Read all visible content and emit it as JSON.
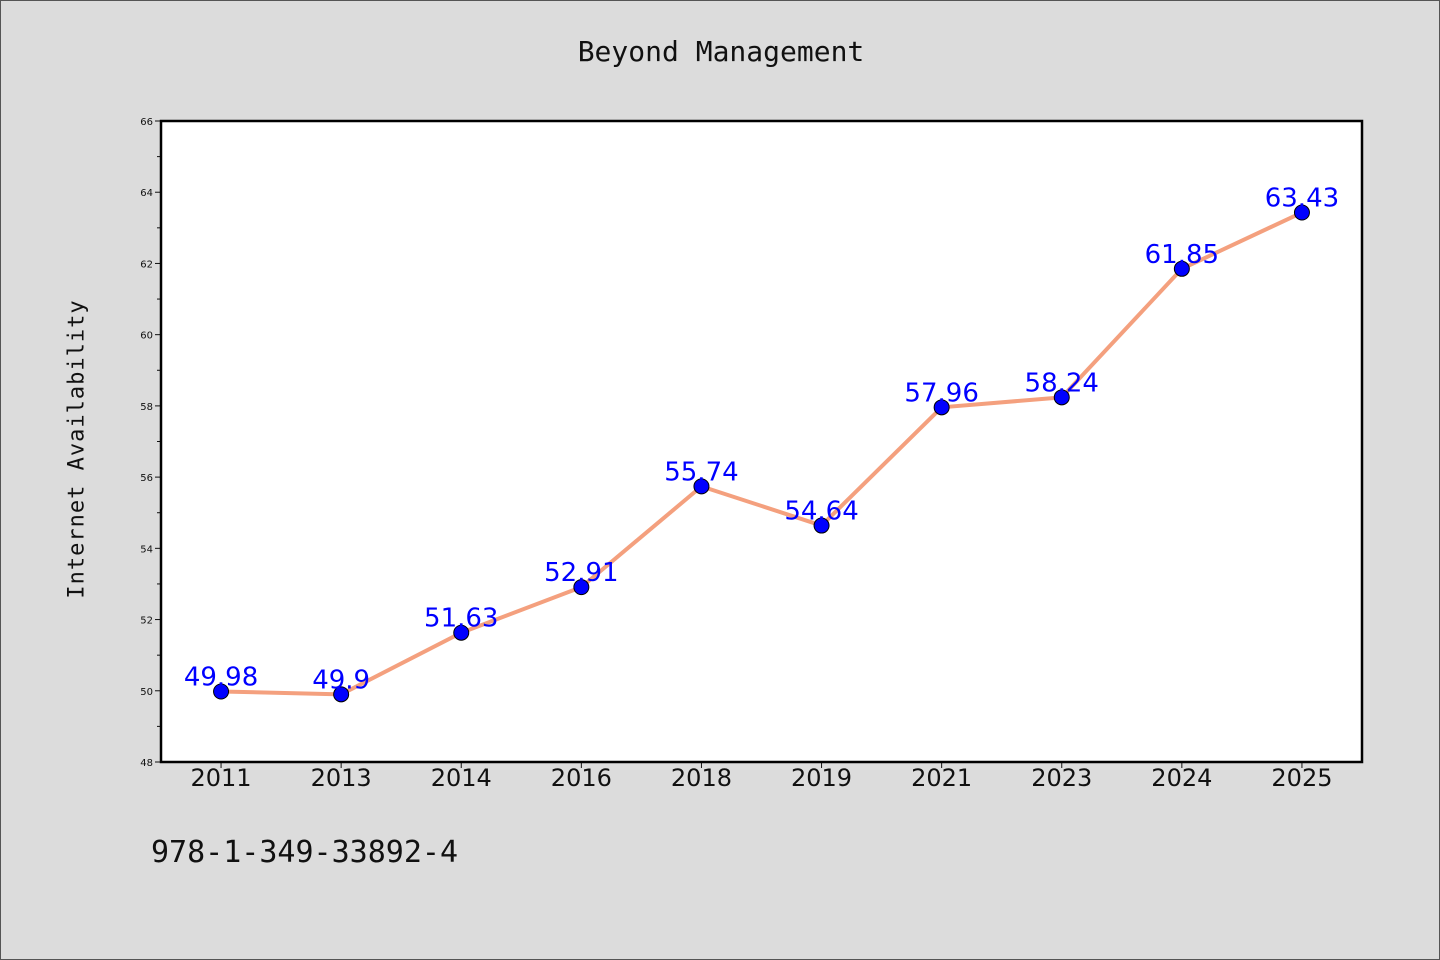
{
  "colors": {
    "background": "#dcdcdc",
    "plot_area": "#ffffff",
    "line": "#f4a07e",
    "marker": "#0000ff",
    "label": "#0000ff"
  },
  "footer_code": "978-1-349-33892-4",
  "chart_data": {
    "type": "line",
    "title": "Beyond Management",
    "xlabel": "",
    "ylabel": "Internet Availability",
    "categories": [
      "2011",
      "2013",
      "2014",
      "2016",
      "2018",
      "2019",
      "2021",
      "2023",
      "2024",
      "2025"
    ],
    "series": [
      {
        "values": [
          49.98,
          49.9,
          51.63,
          52.91,
          55.74,
          54.64,
          57.96,
          58.24,
          61.85,
          63.43
        ],
        "data_labels": [
          "49.98",
          "49.9",
          "51.63",
          "52.91",
          "55.74",
          "54.64",
          "57.96",
          "58.24",
          "61.85",
          "63.43"
        ]
      }
    ],
    "ylim": [
      48,
      66
    ],
    "y_ticks": [
      48,
      50,
      52,
      54,
      56,
      58,
      60,
      62,
      64,
      66
    ],
    "y_tick_labels": [
      "48",
      "50",
      "52",
      "54",
      "56",
      "58",
      "60",
      "62",
      "64",
      "66"
    ],
    "grid": false,
    "legend": "none"
  }
}
